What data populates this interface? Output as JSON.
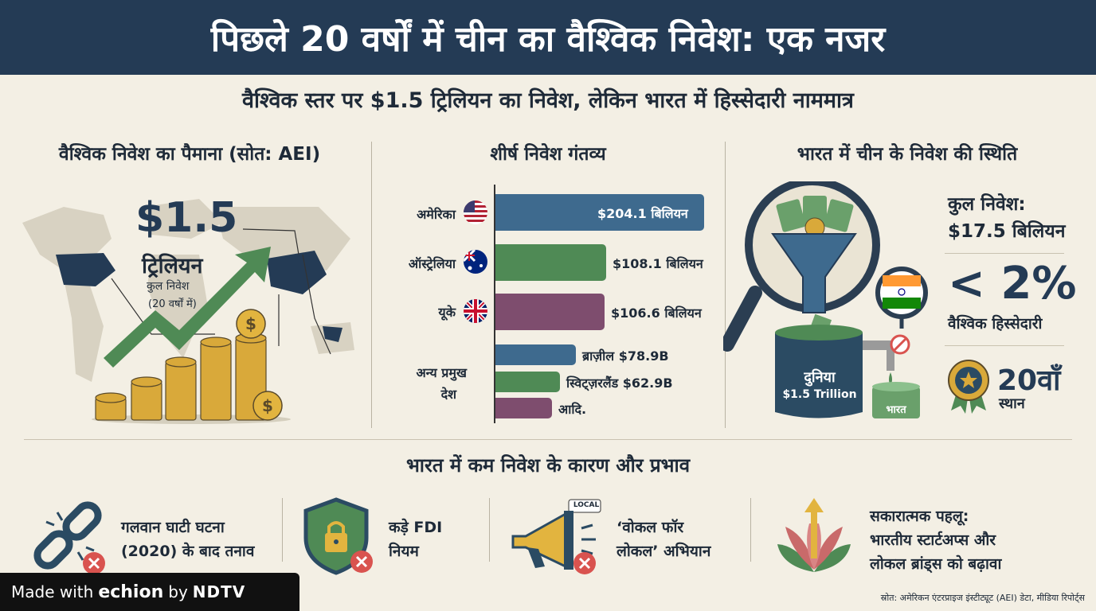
{
  "header": {
    "title": "पिछले 20 वर्षों में चीन का वैश्विक निवेश: एक नजर"
  },
  "subtitle": "वैश्विक स्तर पर $1.5 ट्रिलियन का निवेश, लेकिन भारत में हिस्सेदारी नाममात्र",
  "left": {
    "title": "वैश्विक निवेश का पैमाना (सोत: AEI)",
    "amount": "$1.5",
    "unit": "ट्रिलियन",
    "label": "कुल निवेश",
    "period": "(20 वर्षों में)"
  },
  "middle": {
    "title": "शीर्ष निवेश गंतव्य",
    "others_label_1": "अन्य प्रमुख",
    "others_label_2": "देश",
    "bars": [
      {
        "country": "अमेरिका",
        "label": "$204.1 बिलियन",
        "value": 204.1,
        "color": "#3e6a8e"
      },
      {
        "country": "ऑस्ट्रेलिया",
        "label": "$108.1 बिलियन",
        "value": 108.1,
        "color": "#4f8a55"
      },
      {
        "country": "यूके",
        "label": "$106.6 बिलियन",
        "value": 106.6,
        "color": "#7e4d6e"
      },
      {
        "country": "",
        "label": "ब्राज़ील $78.9B",
        "value": 78.9,
        "color": "#3e6a8e"
      },
      {
        "country": "",
        "label": "स्विट्ज़रलैंड $62.9B",
        "value": 62.9,
        "color": "#4f8a55"
      },
      {
        "country": "",
        "label": "आदि.",
        "value": 55,
        "color": "#7e4d6e"
      }
    ]
  },
  "right": {
    "title": "भारत में चीन के निवेश की स्थिति",
    "world_label": "दुनिया",
    "world_value": "$1.5 Trillion",
    "india_label": "भारत",
    "total_label": "कुल निवेश:",
    "total_value": "$17.5 बिलियन",
    "share_value": "< 2%",
    "share_label": "वैश्विक हिस्सेदारी",
    "rank_value": "20वाँ",
    "rank_label": "स्थान"
  },
  "bottom": {
    "title": "भारत में कम निवेश के कारण और प्रभाव",
    "reasons": [
      {
        "line1": "गलवान घाटी घटना",
        "line2": "(2020) के बाद तनाव",
        "line3": ""
      },
      {
        "line1": "कड़े FDI",
        "line2": "नियम",
        "line3": ""
      },
      {
        "line1": "‘वोकल फॉर",
        "line2": "लोकल’ अभियान",
        "line3": ""
      },
      {
        "line1": "सकारात्मक पहलू:",
        "line2": "भारतीय स्टार्टअप्स और",
        "line3": "लोकल ब्रांड्स को बढ़ावा"
      }
    ],
    "megaphone_tag": "LOCAL"
  },
  "watermark": {
    "made_with": "Made with",
    "brand": "echion",
    "by": "by",
    "ndtv": "NDTV"
  },
  "source": "स्रोत: अमेरिकन एंटरप्राइज इंस्टीट्यूट (AEI) डेटा, मीडिया रिपोर्ट्स",
  "colors": {
    "navy": "#243b55",
    "green": "#4f8a55",
    "plum": "#7e4d6e",
    "gold": "#d9a93a",
    "red": "#d9534f"
  }
}
